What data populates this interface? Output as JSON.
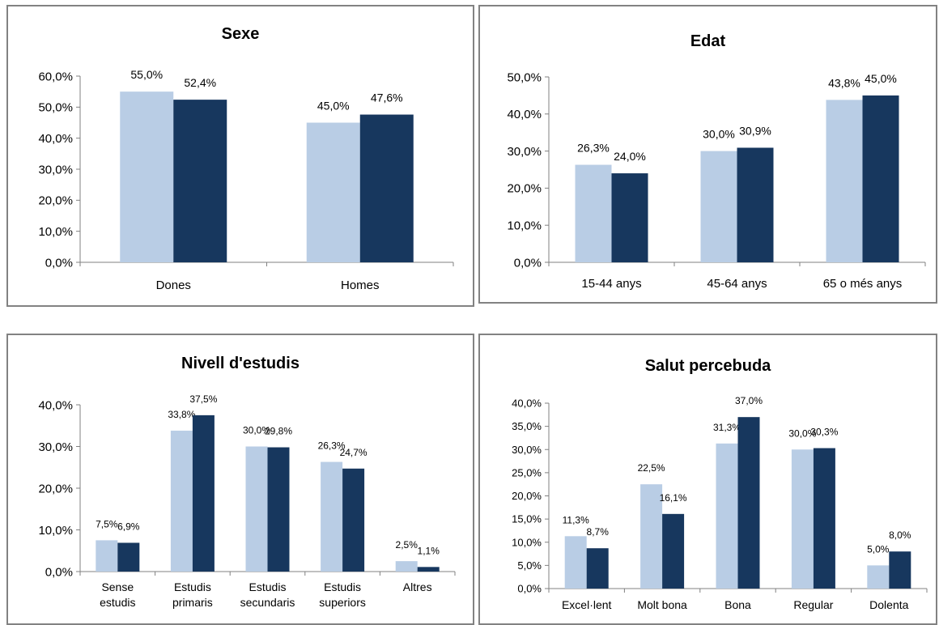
{
  "colors": {
    "series_a": "#b9cde5",
    "series_b": "#17375e",
    "axis": "#808080"
  },
  "chart_data": [
    {
      "type": "bar",
      "title": "Sexe",
      "categories": [
        [
          "Dones"
        ],
        [
          "Homes"
        ]
      ],
      "series": [
        {
          "values": [
            55.0,
            45.0
          ],
          "labels": [
            "55,0%",
            "45,0%"
          ]
        },
        {
          "values": [
            52.4,
            47.6
          ],
          "labels": [
            "52,4%",
            "47,6%"
          ]
        }
      ],
      "ylim": [
        0,
        60
      ],
      "yticks": [
        0,
        10,
        20,
        30,
        40,
        50,
        60
      ],
      "ytick_labels": [
        "0,0%",
        "10,0%",
        "20,0%",
        "30,0%",
        "40,0%",
        "50,0%",
        "60,0%"
      ],
      "grid": false,
      "legend": "none"
    },
    {
      "type": "bar",
      "title": "Edat",
      "categories": [
        [
          "15-44 anys"
        ],
        [
          "45-64 anys"
        ],
        [
          "65 o més anys"
        ]
      ],
      "series": [
        {
          "values": [
            26.3,
            30.0,
            43.8
          ],
          "labels": [
            "26,3%",
            "30,0%",
            "43,8%"
          ]
        },
        {
          "values": [
            24.0,
            30.9,
            45.0
          ],
          "labels": [
            "24,0%",
            "30,9%",
            "45,0%"
          ]
        }
      ],
      "ylim": [
        0,
        50
      ],
      "yticks": [
        0,
        10,
        20,
        30,
        40,
        50
      ],
      "ytick_labels": [
        "0,0%",
        "10,0%",
        "20,0%",
        "30,0%",
        "40,0%",
        "50,0%"
      ],
      "grid": false,
      "legend": "none"
    },
    {
      "type": "bar",
      "title": "Nivell d'estudis",
      "categories": [
        [
          "Sense",
          "estudis"
        ],
        [
          "Estudis",
          "primaris"
        ],
        [
          "Estudis",
          "secundaris"
        ],
        [
          "Estudis",
          "superiors"
        ],
        [
          "Altres"
        ]
      ],
      "series": [
        {
          "values": [
            7.5,
            33.8,
            30.0,
            26.3,
            2.5
          ],
          "labels": [
            "7,5%",
            "33,8%",
            "30,0%",
            "26,3%",
            "2,5%"
          ]
        },
        {
          "values": [
            6.9,
            37.5,
            29.8,
            24.7,
            1.1
          ],
          "labels": [
            "6,9%",
            "37,5%",
            "29,8%",
            "24,7%",
            "1,1%"
          ]
        }
      ],
      "ylim": [
        0,
        40
      ],
      "yticks": [
        0,
        10,
        20,
        30,
        40
      ],
      "ytick_labels": [
        "0,0%",
        "10,0%",
        "20,0%",
        "30,0%",
        "40,0%"
      ],
      "grid": false,
      "legend": "none"
    },
    {
      "type": "bar",
      "title": "Salut percebuda",
      "categories": [
        [
          "Excel·lent"
        ],
        [
          "Molt bona"
        ],
        [
          "Bona"
        ],
        [
          "Regular"
        ],
        [
          "Dolenta"
        ]
      ],
      "series": [
        {
          "values": [
            11.3,
            22.5,
            31.3,
            30.0,
            5.0
          ],
          "labels": [
            "11,3%",
            "22,5%",
            "31,3%",
            "30,0%",
            "5,0%"
          ]
        },
        {
          "values": [
            8.7,
            16.1,
            37.0,
            30.3,
            8.0
          ],
          "labels": [
            "8,7%",
            "16,1%",
            "37,0%",
            "30,3%",
            "8,0%"
          ]
        }
      ],
      "ylim": [
        0,
        40
      ],
      "yticks": [
        0,
        5,
        10,
        15,
        20,
        25,
        30,
        35,
        40
      ],
      "ytick_labels": [
        "0,0%",
        "5,0%",
        "10,0%",
        "15,0%",
        "20,0%",
        "25,0%",
        "30,0%",
        "35,0%",
        "40,0%"
      ],
      "grid": false,
      "legend": "none"
    }
  ]
}
